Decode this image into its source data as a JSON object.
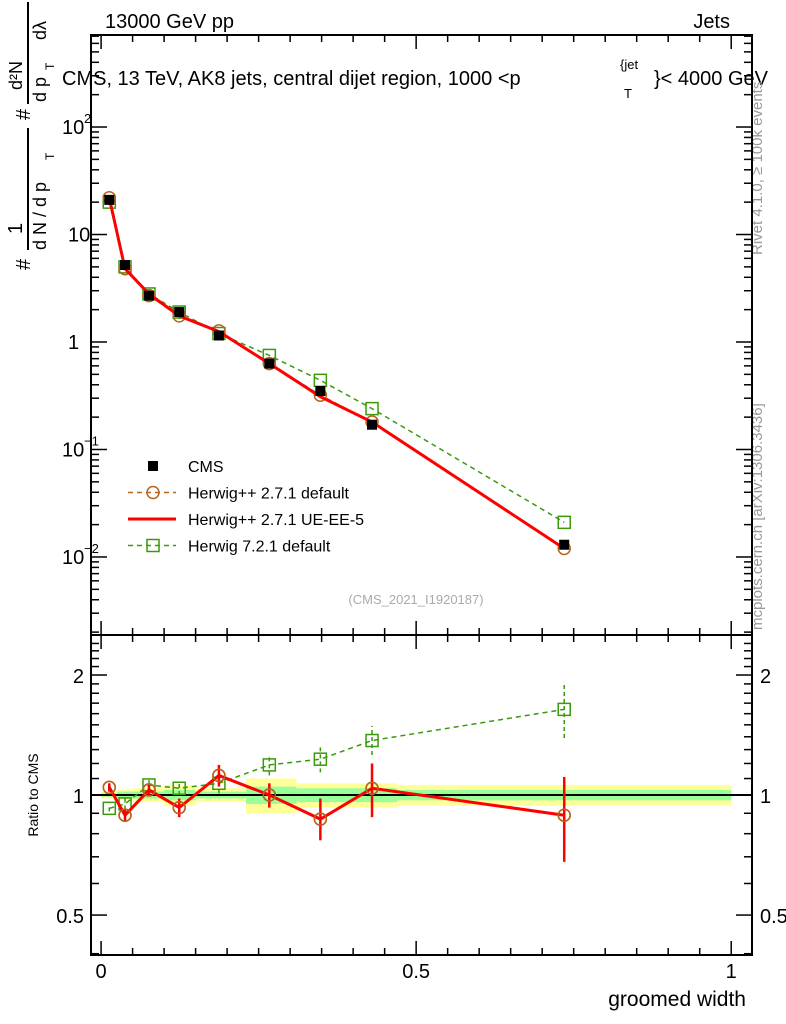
{
  "header": {
    "left": "13000 GeV pp",
    "right": "Jets"
  },
  "side_text": {
    "rivet": "Rivet 4.1.0, ≥ 100k events",
    "mcplots": "mcplots.cern.ch [arXiv:1306.3436]"
  },
  "watermark": "(CMS_2021_I1920187)",
  "chart_data": [
    {
      "type": "line",
      "title": "CMS, 13 TeV, AK8 jets, central dijet region, 1000 <p_T^{jet}< 4000 GeV",
      "title_parts": {
        "main": "CMS, 13 TeV, AK8 jets, central dijet region, 1000 <p",
        "sup": "{jet",
        "sub": "T",
        "tail": "}< 4000 GeV"
      },
      "ylabel": "1 / (dN / dp_T) · d²N / dp_T dλ",
      "ylabel_parts": {
        "hash1": "#",
        "one": "1",
        "den": "d N / d p",
        "T": "T",
        "hash2": "#",
        "num": "d²N",
        "den2": "d p",
        "T2": "T",
        "dl": "dλ"
      },
      "yscale": "log",
      "ylim": [
        0.00188,
        718
      ],
      "xlim": [
        -0.016,
        1.033
      ],
      "yticks": [
        {
          "v": 100,
          "base": "10",
          "exp": "2"
        },
        {
          "v": 10,
          "base": "10",
          "exp": ""
        },
        {
          "v": 1,
          "base": "1",
          "exp": ""
        },
        {
          "v": 0.1,
          "base": "10",
          "exp": "−1"
        },
        {
          "v": 0.01,
          "base": "10",
          "exp": "−2"
        }
      ],
      "x": [
        0.013,
        0.038,
        0.076,
        0.124,
        0.187,
        0.267,
        0.348,
        0.43,
        0.735
      ],
      "series": [
        {
          "name": "CMS",
          "color": "#000000",
          "style": "marker-square-filled",
          "values": [
            21,
            5.2,
            2.7,
            1.9,
            1.15,
            0.63,
            0.35,
            0.17,
            0.013
          ]
        },
        {
          "name": "Herwig++ 2.7.1 default",
          "color": "#b5651d",
          "style": "dashed-circle",
          "values": [
            22,
            4.8,
            2.7,
            1.75,
            1.27,
            0.63,
            0.32,
            0.18,
            0.012
          ]
        },
        {
          "name": "Herwig++ 2.7.1 UE-EE-5",
          "color": "#ff0000",
          "style": "solid",
          "values": [
            22,
            4.8,
            2.8,
            1.75,
            1.25,
            0.63,
            0.31,
            0.18,
            0.012
          ]
        },
        {
          "name": "Herwig 7.2.1 default",
          "color": "#3a9a0a",
          "style": "dashed-square",
          "values": [
            20,
            5.0,
            2.8,
            1.9,
            1.2,
            0.75,
            0.44,
            0.24,
            0.021
          ]
        }
      ],
      "legend": "middle-left"
    },
    {
      "type": "line",
      "ylabel": "Ratio to CMS",
      "xlabel": "groomed width",
      "yscale": "log",
      "ylim": [
        0.397,
        2.52
      ],
      "xlim": [
        -0.016,
        1.033
      ],
      "yticks": [
        {
          "v": 0.5,
          "label": "0.5"
        },
        {
          "v": 1,
          "label": "1"
        },
        {
          "v": 2,
          "label": "2"
        }
      ],
      "xticks": [
        {
          "v": 0,
          "label": "0"
        },
        {
          "v": 0.5,
          "label": "0.5"
        },
        {
          "v": 1,
          "label": "1"
        }
      ],
      "bin_edges": [
        0,
        0.025,
        0.05,
        0.1,
        0.15,
        0.23,
        0.31,
        0.39,
        0.47,
        1.0
      ],
      "band_total": [
        0.02,
        0.03,
        0.04,
        0.06,
        0.04,
        0.1,
        0.07,
        0.07,
        0.06
      ],
      "band_stat": [
        0.01,
        0.02,
        0.02,
        0.03,
        0.02,
        0.05,
        0.04,
        0.04,
        0.03
      ],
      "x": [
        0.013,
        0.038,
        0.076,
        0.124,
        0.187,
        0.267,
        0.348,
        0.43,
        0.735
      ],
      "series": [
        {
          "name": "Herwig++ 2.7.1 UE-EE-5",
          "color": "#ff0000",
          "values": [
            1.045,
            0.89,
            1.03,
            0.93,
            1.12,
            1.0,
            0.87,
            1.04,
            0.89
          ],
          "err_lo": [
            1.02,
            0.86,
            1.0,
            0.88,
            1.05,
            0.93,
            0.77,
            0.88,
            0.68
          ],
          "err_hi": [
            1.07,
            0.92,
            1.06,
            0.98,
            1.19,
            1.07,
            0.98,
            1.2,
            1.11
          ]
        },
        {
          "name": "Herwig++ 2.7.1 default",
          "color": "#b5651d",
          "values": [
            1.045,
            0.89,
            1.03,
            0.93,
            1.12,
            1.0,
            0.87,
            1.04,
            0.89
          ],
          "err_lo": [
            1.02,
            0.87,
            1.01,
            0.9,
            1.08,
            0.95,
            0.8,
            0.95,
            0.75
          ],
          "err_hi": [
            1.07,
            0.91,
            1.05,
            0.96,
            1.16,
            1.05,
            0.94,
            1.13,
            1.04
          ]
        },
        {
          "name": "Herwig 7.2.1 default",
          "color": "#3a9a0a",
          "values": [
            0.926,
            0.95,
            1.06,
            1.04,
            1.07,
            1.19,
            1.23,
            1.37,
            1.64
          ],
          "err_lo": [
            0.91,
            0.92,
            1.03,
            1.0,
            1.01,
            1.12,
            1.14,
            1.26,
            1.39
          ],
          "err_hi": [
            0.94,
            0.98,
            1.09,
            1.08,
            1.12,
            1.25,
            1.32,
            1.49,
            1.9
          ]
        }
      ]
    }
  ]
}
